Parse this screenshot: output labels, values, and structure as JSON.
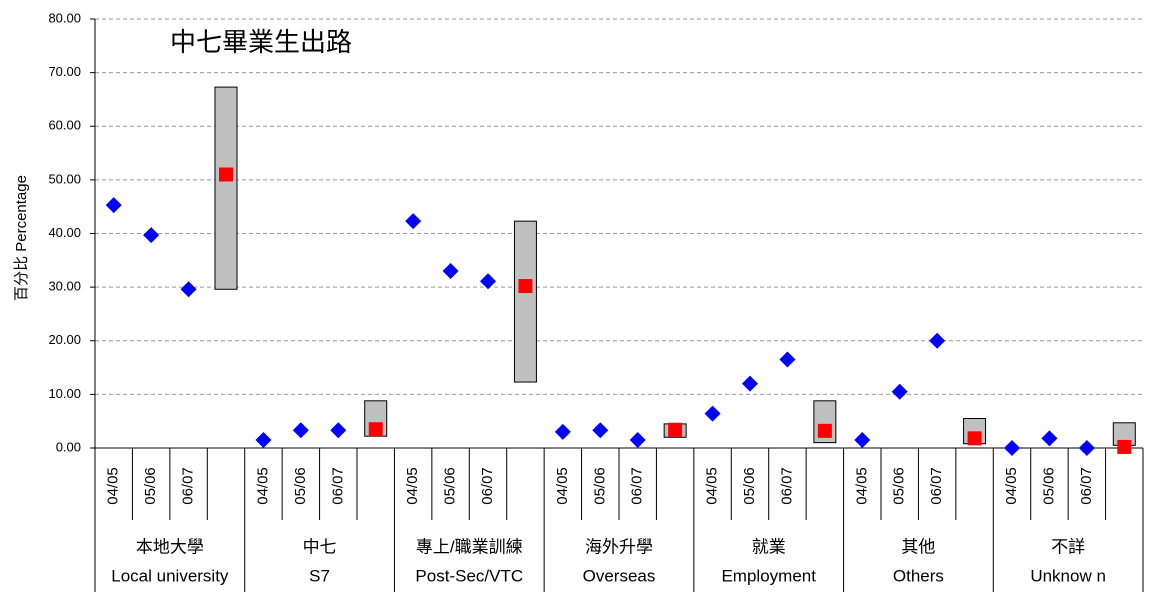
{
  "chart_data": {
    "type": "range-dot",
    "title": "中七畢業生出路",
    "ylabel": "百分比 Percentage",
    "ylim": [
      0,
      80
    ],
    "yticks": [
      {
        "value": 0,
        "label": "0.00"
      },
      {
        "value": 10,
        "label": "10.00"
      },
      {
        "value": 20,
        "label": "20.00"
      },
      {
        "value": 30,
        "label": "30.00"
      },
      {
        "value": 40,
        "label": "40.00"
      },
      {
        "value": 50,
        "label": "50.00"
      },
      {
        "value": 60,
        "label": "60.00"
      },
      {
        "value": 70,
        "label": "70.00"
      },
      {
        "value": 80,
        "label": "80.00"
      }
    ],
    "grid": true,
    "categories": [
      "04/05",
      "05/06",
      "06/07",
      null,
      "04/05",
      "05/06",
      "06/07",
      null,
      "04/05",
      "05/06",
      "06/07",
      null,
      "04/05",
      "05/06",
      "06/07",
      null,
      "04/05",
      "05/06",
      "06/07",
      null,
      "04/05",
      "05/06",
      "06/07",
      null,
      "04/05",
      "05/06",
      "06/07",
      null
    ],
    "groups": [
      {
        "label": "本地大學",
        "label_en": "Local university"
      },
      {
        "label": "中七",
        "label_en": "S7"
      },
      {
        "label": "專上/職業訓練",
        "label_en": "Post-Sec/VTC"
      },
      {
        "label": "海外升學",
        "label_en": "Overseas"
      },
      {
        "label": "就業",
        "label_en": "Employment"
      },
      {
        "label": "其他",
        "label_en": "Others"
      },
      {
        "label": "不詳",
        "label_en": "Unknow n"
      }
    ],
    "series": [
      {
        "color": "#0000ff",
        "marker": "diamond",
        "values": [
          45.3,
          39.7,
          29.6,
          null,
          1.5,
          3.3,
          3.3,
          null,
          42.3,
          33.0,
          31.1,
          null,
          3.0,
          3.3,
          1.5,
          null,
          6.4,
          12.0,
          16.5,
          null,
          1.5,
          10.5,
          20.0,
          null,
          0.0,
          1.8,
          0.0,
          null
        ]
      },
      {
        "color": "#ff0000",
        "marker": "square",
        "values": [
          null,
          null,
          null,
          51.0,
          null,
          null,
          null,
          3.5,
          null,
          null,
          null,
          30.2,
          null,
          null,
          null,
          3.4,
          null,
          null,
          null,
          3.2,
          null,
          null,
          null,
          1.8,
          null,
          null,
          null,
          0.2
        ]
      }
    ],
    "ranges": {
      "color": "#c0c0c0",
      "low": [
        29.6,
        2.2,
        12.3,
        2.0,
        1.0,
        0.8,
        0.5
      ],
      "high": [
        67.3,
        8.8,
        42.3,
        4.5,
        8.8,
        5.5,
        4.7
      ]
    }
  }
}
